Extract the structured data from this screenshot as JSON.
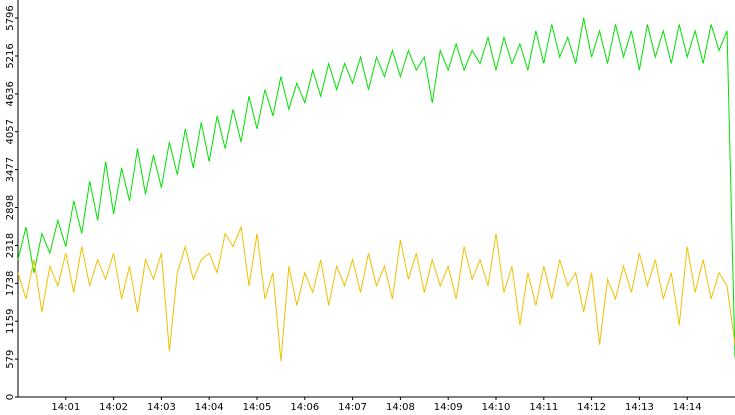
{
  "chart_data": {
    "type": "line",
    "x": [
      50400,
      50410,
      50420,
      50430,
      50440,
      50450,
      50460,
      50470,
      50480,
      50490,
      50500,
      50510,
      50520,
      50530,
      50540,
      50550,
      50560,
      50570,
      50580,
      50590,
      50600,
      50610,
      50620,
      50630,
      50640,
      50650,
      50660,
      50670,
      50680,
      50690,
      50700,
      50710,
      50720,
      50730,
      50740,
      50750,
      50760,
      50770,
      50780,
      50790,
      50800,
      50810,
      50820,
      50830,
      50840,
      50850,
      50860,
      50870,
      50880,
      50890,
      50900,
      50910,
      50920,
      50930,
      50940,
      50950,
      50960,
      50970,
      50980,
      50990,
      51000,
      51010,
      51020,
      51030,
      51040,
      51050,
      51060,
      51070,
      51080,
      51090,
      51100,
      51110,
      51120,
      51130,
      51140,
      51150,
      51160,
      51170,
      51180,
      51190,
      51200,
      51210,
      51220,
      51230,
      51240,
      51250,
      51260,
      51270,
      51280,
      51290,
      51300
    ],
    "series": [
      {
        "color": "#00e000",
        "values": [
          2100,
          2600,
          1900,
          2500,
          2200,
          2700,
          2300,
          3000,
          2500,
          3300,
          2700,
          3600,
          2800,
          3500,
          3000,
          3800,
          3100,
          3700,
          3200,
          3900,
          3400,
          4100,
          3500,
          4200,
          3600,
          4300,
          3800,
          4400,
          3900,
          4600,
          4100,
          4700,
          4300,
          4900,
          4400,
          4800,
          4500,
          5000,
          4600,
          5100,
          4700,
          5100,
          4800,
          5200,
          4700,
          5200,
          4900,
          5300,
          4900,
          5300,
          5000,
          5200,
          4500,
          5300,
          5000,
          5400,
          5000,
          5300,
          5100,
          5500,
          5000,
          5500,
          5100,
          5400,
          5000,
          5600,
          5100,
          5700,
          5200,
          5500,
          5100,
          5800,
          5200,
          5600,
          5100,
          5700,
          5200,
          5600,
          5000,
          5700,
          5200,
          5600,
          5100,
          5700,
          5200,
          5600,
          5100,
          5700,
          5300,
          5600,
          600
        ]
      },
      {
        "color": "#f0c000",
        "values": [
          1900,
          1500,
          2100,
          1300,
          2000,
          1700,
          2200,
          1600,
          2300,
          1700,
          2100,
          1800,
          2200,
          1500,
          2000,
          1300,
          2100,
          1800,
          2200,
          700,
          1900,
          2300,
          1800,
          2100,
          2200,
          1900,
          2500,
          2300,
          2600,
          1700,
          2500,
          1500,
          1900,
          550,
          2000,
          1400,
          1900,
          1600,
          2100,
          1400,
          2000,
          1700,
          2100,
          1600,
          2200,
          1700,
          2000,
          1500,
          2400,
          1800,
          2200,
          1600,
          2100,
          1700,
          2000,
          1500,
          2300,
          1800,
          2100,
          1700,
          2500,
          1600,
          2000,
          1100,
          1900,
          1400,
          2000,
          1500,
          2100,
          1700,
          1900,
          1300,
          1900,
          800,
          1800,
          1500,
          2000,
          1600,
          2200,
          1700,
          2100,
          1500,
          1900,
          1100,
          2300,
          1600,
          2100,
          1500,
          1900,
          1700,
          800
        ]
      }
    ],
    "xlim": [
      50400,
      51300
    ],
    "xticks": [
      {
        "value": 50460,
        "label": "14:01"
      },
      {
        "value": 50520,
        "label": "14:02"
      },
      {
        "value": 50580,
        "label": "14:03"
      },
      {
        "value": 50640,
        "label": "14:04"
      },
      {
        "value": 50700,
        "label": "14:05"
      },
      {
        "value": 50760,
        "label": "14:06"
      },
      {
        "value": 50820,
        "label": "14:07"
      },
      {
        "value": 50880,
        "label": "14:08"
      },
      {
        "value": 50940,
        "label": "14:09"
      },
      {
        "value": 51000,
        "label": "14:10"
      },
      {
        "value": 51060,
        "label": "14:11"
      },
      {
        "value": 51120,
        "label": "14:12"
      },
      {
        "value": 51180,
        "label": "14:13"
      },
      {
        "value": 51240,
        "label": "14:14"
      }
    ],
    "ylim": [
      0,
      6072
    ],
    "yticks": [
      0,
      579,
      1159,
      1738,
      2318,
      2898,
      3477,
      4057,
      4636,
      5216,
      5796
    ]
  }
}
